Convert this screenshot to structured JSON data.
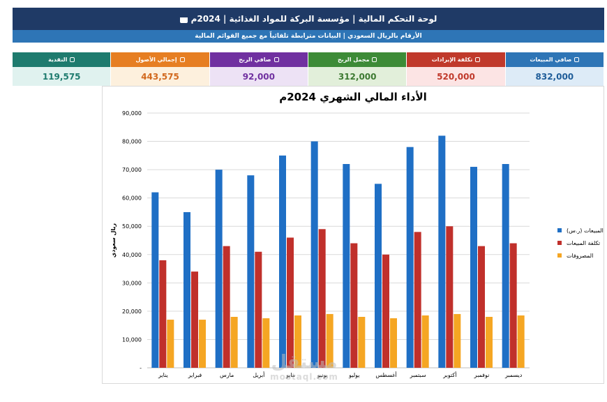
{
  "header": {
    "title": "لوحة التحكم المالية  |  مؤسسة البركة للمواد الغذائية  |  2024م",
    "subtitle": "الأرقام بالريال السعودي | البيانات مترابطة تلقائياً مع جميع القوائم المالية"
  },
  "kpis": [
    {
      "label": "صافي المبيعات",
      "value": "832,000",
      "icon": "money-bag-icon",
      "head_color": "#2e75b6",
      "bg_color": "#ddebf7",
      "text_color": "#1f5d99"
    },
    {
      "label": "تكلفة الإيرادات",
      "value": "520,000",
      "icon": "box-icon",
      "head_color": "#c0392b",
      "bg_color": "#fce4e4",
      "text_color": "#c0392b"
    },
    {
      "label": "مجمل الربح",
      "value": "312,000",
      "icon": "grid-icon",
      "head_color": "#3d8b37",
      "bg_color": "#e2efda",
      "text_color": "#3d7a32"
    },
    {
      "label": "صافي الربح",
      "value": "92,000",
      "icon": "trophy-icon",
      "head_color": "#7030a0",
      "bg_color": "#ede2f5",
      "text_color": "#7030a0"
    },
    {
      "label": "إجمالي الأصول",
      "value": "443,575",
      "icon": "bank-icon",
      "head_color": "#e67e22",
      "bg_color": "#fdf0dd",
      "text_color": "#d2691e"
    },
    {
      "label": "النقدية",
      "value": "119,575",
      "icon": "cash-icon",
      "head_color": "#1e7b6e",
      "bg_color": "#e0f2ef",
      "text_color": "#1e7b6e"
    }
  ],
  "chart_data": {
    "type": "bar",
    "title": "الأداء المالي الشهري 2024م",
    "ylabel": "ريال سعودي",
    "xlabel": "",
    "ylim": [
      0,
      90000
    ],
    "yticks": [
      "-",
      "10,000",
      "20,000",
      "30,000",
      "40,000",
      "50,000",
      "60,000",
      "70,000",
      "80,000",
      "90,000"
    ],
    "grid": true,
    "legend": "right",
    "categories": [
      "يناير",
      "فبراير",
      "مارس",
      "أبريل",
      "مايو",
      "يونيو",
      "يوليو",
      "أغسطس",
      "سبتمبر",
      "أكتوبر",
      "نوفمبر",
      "ديسمبر"
    ],
    "series": [
      {
        "name": "المبيعات (ر.س)",
        "color": "#1f6fc5",
        "values": [
          62000,
          55000,
          70000,
          68000,
          75000,
          80000,
          72000,
          65000,
          78000,
          82000,
          71000,
          72000
        ]
      },
      {
        "name": "تكلفة المبيعات",
        "color": "#c0302b",
        "values": [
          38000,
          34000,
          43000,
          41000,
          46000,
          49000,
          44000,
          40000,
          48000,
          50000,
          43000,
          44000
        ]
      },
      {
        "name": "المصروفات",
        "color": "#f5a623",
        "values": [
          17000,
          17000,
          18000,
          17500,
          18500,
          19000,
          18000,
          17500,
          18500,
          19000,
          18000,
          18500
        ]
      }
    ]
  },
  "watermark": {
    "main": "مستقل",
    "sub": "mostaql.com"
  }
}
